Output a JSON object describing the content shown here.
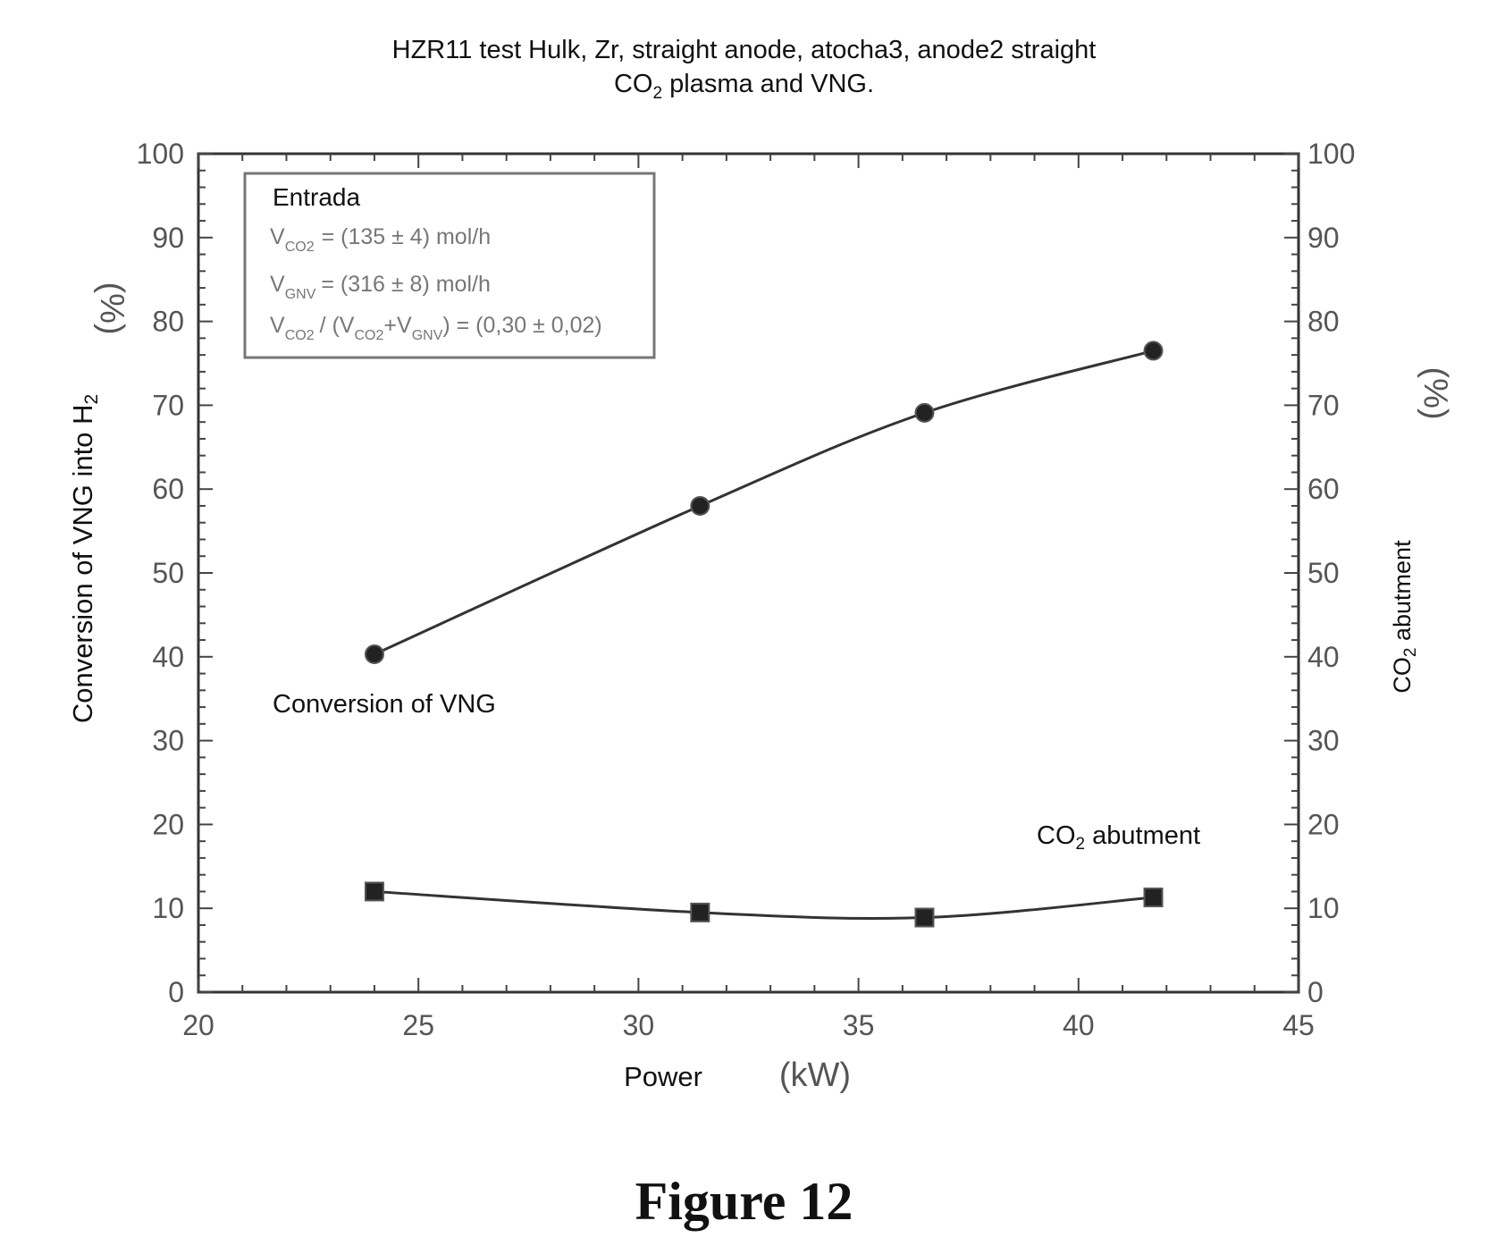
{
  "chart_data": {
    "type": "line",
    "title": "HZR11 test Hulk, Zr, straight anode, atocha3, anode2 straight",
    "subtitle": {
      "prefix": "CO",
      "sub": "2",
      "suffix": " plasma and VNG."
    },
    "xlabel": "Power",
    "xunit": "(kW)",
    "ylabel": {
      "prefix": "Conversion of VNG into H",
      "sub": "2"
    },
    "yunit": "(%)",
    "y2label": {
      "prefix": "CO",
      "sub": "2",
      "suffix": " abutment"
    },
    "y2unit": "(%)",
    "xlim": [
      20,
      45
    ],
    "ylim": [
      0,
      100
    ],
    "y2lim": [
      0,
      100
    ],
    "xticks": [
      "20",
      "25",
      "30",
      "35",
      "40",
      "45"
    ],
    "yticks": [
      "0",
      "10",
      "20",
      "30",
      "40",
      "50",
      "60",
      "70",
      "80",
      "90",
      "100"
    ],
    "grid": false,
    "series": [
      {
        "name": "Conversion of VNG",
        "marker": "circle",
        "x": [
          24.0,
          31.4,
          36.5,
          41.7
        ],
        "values": [
          40.3,
          58.0,
          69.1,
          76.5
        ]
      },
      {
        "name": "CO2 abutment",
        "label": {
          "prefix": "CO",
          "sub": "2",
          "suffix": " abutment"
        },
        "marker": "square",
        "x": [
          24.0,
          31.4,
          36.5,
          41.7
        ],
        "values": [
          12.0,
          9.5,
          8.9,
          11.3
        ]
      }
    ],
    "legend": {
      "placement": "top-left",
      "title": "Entrada",
      "lines": [
        "V",
        "= (135 ± 4) mol/h",
        "V",
        "= (316 ± 8) mol/h",
        "V",
        "/ (V",
        "+V",
        ") = (0,30 ± 0,02)"
      ],
      "subscripts": [
        "CO2",
        "GNV",
        "CO2",
        "CO2",
        "GNV"
      ]
    },
    "caption": "Figure 12"
  }
}
